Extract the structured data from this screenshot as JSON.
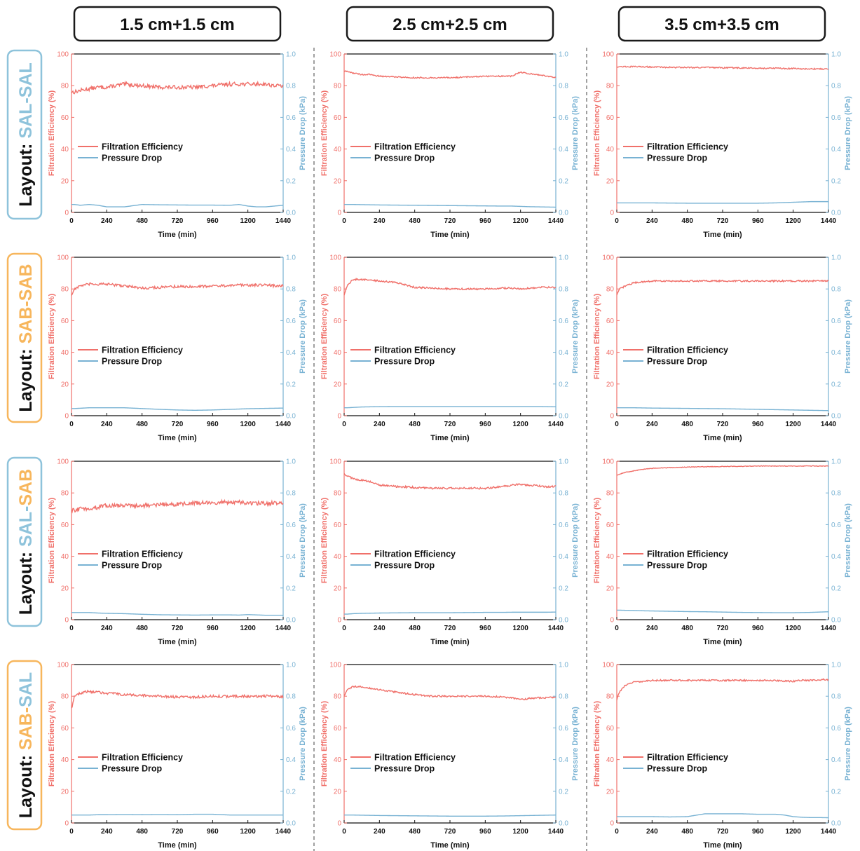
{
  "column_headers": [
    "1.5 cm+1.5 cm",
    "2.5 cm+2.5 cm",
    "3.5 cm+3.5 cm"
  ],
  "row_labels": [
    {
      "prefix": "Layout:",
      "first": "SAL",
      "dash": "-",
      "second": "SAL",
      "first_color": "#8EC3DB",
      "second_color": "#8EC3DB",
      "border_color": "#8EC3DB"
    },
    {
      "prefix": "Layout:",
      "first": "SAB",
      "dash": "-",
      "second": "SAB",
      "first_color": "#F7B65C",
      "second_color": "#F7B65C",
      "border_color": "#F7B65C"
    },
    {
      "prefix": "Layout:",
      "first": "SAL",
      "dash": "-",
      "second": "SAB",
      "first_color": "#8EC3DB",
      "second_color": "#F7B65C",
      "border_color": "#8EC3DB"
    },
    {
      "prefix": "Layout:",
      "first": "SAB",
      "dash": "-",
      "second": "SAL",
      "first_color": "#F7B65C",
      "second_color": "#8EC3DB",
      "border_color": "#F7B65C"
    }
  ],
  "colors": {
    "filtration": "#F0706A",
    "pressure": "#78B2D3",
    "axis": "#111111"
  },
  "chart_data": {
    "type": "line",
    "grid": false,
    "legend_placement": "middle-left",
    "xlabel": "Time (min)",
    "ylabel_left": "Filtration Efficiency (%)",
    "ylabel_right": "Pressure Drop (kPa)",
    "xlim": [
      0,
      1440
    ],
    "ylim_left": [
      0,
      100
    ],
    "ylim_right": [
      0,
      1.0
    ],
    "x_ticks": [
      0,
      240,
      480,
      720,
      960,
      1200,
      1440
    ],
    "y_ticks_left": [
      0,
      20,
      40,
      60,
      80,
      100
    ],
    "y_ticks_right": [
      "0.0",
      "0.2",
      "0.4",
      "0.6",
      "0.8",
      "1.0"
    ],
    "legend": [
      "Filtration Efficiency",
      "Pressure Drop"
    ],
    "x": [
      0,
      20,
      60,
      120,
      180,
      240,
      360,
      480,
      600,
      720,
      840,
      960,
      1080,
      1140,
      1200,
      1260,
      1320,
      1380,
      1440
    ],
    "panels": [
      {
        "row": 0,
        "col": 0,
        "noise": 1.2,
        "filtration": [
          76,
          76,
          77,
          78,
          79,
          79,
          81,
          80,
          79,
          79,
          79,
          80,
          81,
          81,
          81,
          81,
          81,
          80,
          80
        ],
        "pressure": [
          0.05,
          0.05,
          0.045,
          0.05,
          0.045,
          0.035,
          0.035,
          0.05,
          0.048,
          0.047,
          0.046,
          0.046,
          0.045,
          0.05,
          0.04,
          0.035,
          0.035,
          0.04,
          0.045
        ]
      },
      {
        "row": 0,
        "col": 1,
        "noise": 0.4,
        "filtration": [
          89,
          89,
          88,
          87,
          87,
          86,
          85.5,
          85,
          85,
          85,
          85.5,
          86,
          86,
          86,
          88.5,
          87.5,
          87,
          86,
          85
        ],
        "pressure": [
          0.05,
          0.05,
          0.05,
          0.049,
          0.048,
          0.047,
          0.046,
          0.045,
          0.044,
          0.043,
          0.042,
          0.041,
          0.04,
          0.04,
          0.038,
          0.036,
          0.035,
          0.034,
          0.033
        ]
      },
      {
        "row": 0,
        "col": 2,
        "noise": 0.4,
        "filtration": [
          92,
          92,
          92,
          92,
          92,
          91.8,
          91.6,
          91.5,
          91.5,
          91.3,
          91.2,
          91,
          91,
          90.8,
          90.8,
          90.7,
          90.6,
          90.6,
          90.5
        ],
        "pressure": [
          0.06,
          0.06,
          0.06,
          0.06,
          0.06,
          0.06,
          0.059,
          0.058,
          0.058,
          0.058,
          0.058,
          0.058,
          0.06,
          0.062,
          0.064,
          0.066,
          0.068,
          0.068,
          0.068
        ]
      },
      {
        "row": 1,
        "col": 0,
        "noise": 0.8,
        "filtration": [
          76,
          80,
          82,
          83,
          83,
          83,
          82,
          80.5,
          81,
          81.5,
          81.5,
          82,
          82,
          82.5,
          82.5,
          82.5,
          82.5,
          82,
          82
        ],
        "pressure": [
          0.045,
          0.045,
          0.047,
          0.05,
          0.05,
          0.05,
          0.05,
          0.045,
          0.04,
          0.036,
          0.034,
          0.036,
          0.04,
          0.042,
          0.044,
          0.045,
          0.046,
          0.047,
          0.048
        ]
      },
      {
        "row": 1,
        "col": 1,
        "noise": 0.5,
        "filtration": [
          76,
          82,
          86,
          86,
          85.5,
          85,
          84,
          81,
          80.5,
          80,
          80,
          80,
          80.5,
          80.5,
          80,
          80.5,
          81,
          81,
          81
        ],
        "pressure": [
          0.05,
          0.05,
          0.052,
          0.055,
          0.056,
          0.057,
          0.058,
          0.058,
          0.058,
          0.058,
          0.058,
          0.058,
          0.058,
          0.058,
          0.058,
          0.058,
          0.058,
          0.057,
          0.056
        ]
      },
      {
        "row": 1,
        "col": 2,
        "noise": 0.5,
        "filtration": [
          76,
          80,
          82,
          84,
          84.5,
          85,
          85,
          85,
          85,
          85,
          85,
          85,
          85,
          85,
          85,
          85,
          85,
          85,
          85
        ],
        "pressure": [
          0.05,
          0.05,
          0.05,
          0.05,
          0.049,
          0.048,
          0.047,
          0.046,
          0.045,
          0.044,
          0.042,
          0.04,
          0.038,
          0.037,
          0.036,
          0.035,
          0.034,
          0.033,
          0.032
        ]
      },
      {
        "row": 2,
        "col": 0,
        "noise": 1.3,
        "filtration": [
          69,
          69,
          70,
          70,
          71,
          72,
          72,
          72,
          72.5,
          73,
          73.5,
          74,
          74,
          74,
          73.5,
          73.5,
          73.5,
          73.5,
          73
        ],
        "pressure": [
          0.045,
          0.045,
          0.045,
          0.045,
          0.042,
          0.04,
          0.038,
          0.034,
          0.031,
          0.03,
          0.029,
          0.03,
          0.03,
          0.029,
          0.032,
          0.03,
          0.028,
          0.028,
          0.028
        ]
      },
      {
        "row": 2,
        "col": 1,
        "noise": 0.6,
        "filtration": [
          92,
          91,
          89,
          88,
          87,
          85,
          84,
          83.5,
          83,
          83,
          83,
          83,
          84,
          85,
          85.5,
          85,
          84.5,
          84,
          84
        ],
        "pressure": [
          0.035,
          0.035,
          0.038,
          0.04,
          0.041,
          0.042,
          0.043,
          0.044,
          0.044,
          0.044,
          0.045,
          0.046,
          0.046,
          0.047,
          0.047,
          0.047,
          0.047,
          0.047,
          0.048
        ]
      },
      {
        "row": 2,
        "col": 2,
        "noise": 0.2,
        "filtration": [
          91,
          92,
          93,
          94,
          95,
          95.5,
          96,
          96.3,
          96.5,
          96.7,
          96.8,
          97,
          97,
          97,
          97,
          97,
          97,
          97,
          97
        ],
        "pressure": [
          0.06,
          0.06,
          0.059,
          0.058,
          0.056,
          0.055,
          0.053,
          0.051,
          0.05,
          0.048,
          0.046,
          0.045,
          0.044,
          0.044,
          0.044,
          0.045,
          0.046,
          0.048,
          0.05
        ]
      },
      {
        "row": 3,
        "col": 0,
        "noise": 0.8,
        "filtration": [
          72,
          80,
          82,
          83,
          82.5,
          82,
          81,
          80.5,
          80,
          79.5,
          79.5,
          80,
          80,
          80,
          80,
          80,
          80,
          80,
          79.5
        ],
        "pressure": [
          0.05,
          0.05,
          0.05,
          0.05,
          0.052,
          0.052,
          0.053,
          0.052,
          0.053,
          0.052,
          0.055,
          0.055,
          0.05,
          0.05,
          0.05,
          0.05,
          0.05,
          0.05,
          0.05
        ]
      },
      {
        "row": 3,
        "col": 1,
        "noise": 0.5,
        "filtration": [
          80,
          84,
          86,
          86,
          85,
          84,
          82.5,
          81,
          80,
          80,
          80,
          80,
          79.5,
          79,
          78,
          78.5,
          79,
          79,
          79.5
        ],
        "pressure": [
          0.05,
          0.05,
          0.05,
          0.049,
          0.048,
          0.047,
          0.046,
          0.045,
          0.044,
          0.043,
          0.043,
          0.043,
          0.044,
          0.045,
          0.046,
          0.047,
          0.048,
          0.049,
          0.05
        ]
      },
      {
        "row": 3,
        "col": 2,
        "noise": 0.5,
        "filtration": [
          78,
          83,
          87,
          89,
          89.5,
          90,
          90,
          90,
          90,
          90,
          90,
          90,
          90,
          89.5,
          89.5,
          90,
          90,
          90.5,
          90.5
        ],
        "pressure": [
          0.04,
          0.04,
          0.04,
          0.04,
          0.04,
          0.04,
          0.038,
          0.04,
          0.058,
          0.058,
          0.058,
          0.055,
          0.055,
          0.05,
          0.04,
          0.036,
          0.034,
          0.034,
          0.033
        ]
      }
    ]
  }
}
